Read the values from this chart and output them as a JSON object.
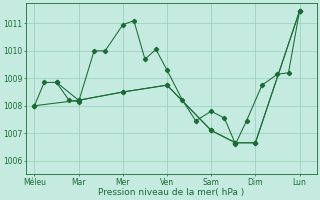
{
  "xlabel": "Pression niveau de la mer( hPa )",
  "xlabels": [
    "Méleu",
    "Mar",
    "Mer",
    "Ven",
    "Sam",
    "Dim",
    "Lun"
  ],
  "xtick_pos": [
    0,
    1,
    2,
    3,
    4,
    5,
    6
  ],
  "ylim": [
    1005.5,
    1011.75
  ],
  "yticks": [
    1006,
    1007,
    1008,
    1009,
    1010,
    1011
  ],
  "bg_color": "#c5eae0",
  "grid_color": "#96ccbb",
  "line_color": "#1a6b35",
  "series_main_x": [
    0.0,
    0.22,
    0.5,
    0.78,
    1.0,
    1.35,
    1.6,
    2.0,
    2.25,
    2.5,
    2.75,
    3.0,
    3.35,
    3.65,
    4.0,
    4.3,
    4.55,
    4.8,
    5.15,
    5.5,
    5.75,
    6.0
  ],
  "series_main_y": [
    1008.0,
    1008.85,
    1008.85,
    1008.2,
    1008.15,
    1010.0,
    1010.0,
    1010.95,
    1011.1,
    1009.7,
    1010.05,
    1009.3,
    1008.2,
    1007.45,
    1007.8,
    1007.55,
    1006.6,
    1007.45,
    1008.75,
    1009.15,
    1009.2,
    1011.45
  ],
  "series_tri1_x": [
    0.0,
    1.0,
    2.0,
    3.0,
    4.0,
    4.55,
    5.0,
    6.0
  ],
  "series_tri1_y": [
    1008.0,
    1008.2,
    1008.5,
    1008.75,
    1007.1,
    1006.65,
    1006.65,
    1011.45
  ],
  "series_tri2_x": [
    0.5,
    1.0,
    2.0,
    3.0,
    4.0,
    4.55,
    5.0,
    6.0
  ],
  "series_tri2_y": [
    1008.85,
    1008.2,
    1008.5,
    1008.75,
    1007.1,
    1006.65,
    1006.65,
    1011.45
  ],
  "markersize": 2.2,
  "lw": 0.75
}
